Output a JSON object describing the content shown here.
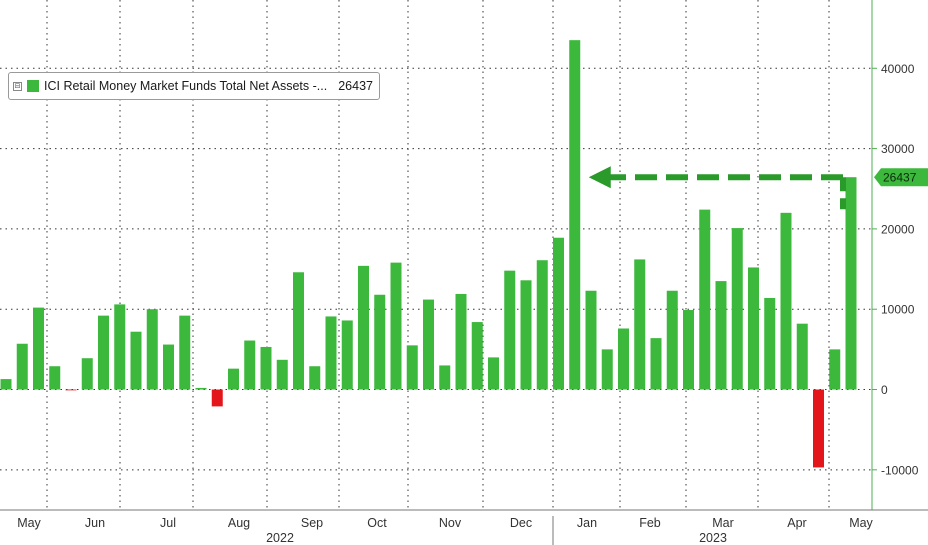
{
  "chart_data": {
    "type": "bar",
    "legend": {
      "label": "ICI Retail Money Market Funds Total Net Assets -...",
      "value": "26437",
      "toggle_glyph": "⊟",
      "placement": "top-left"
    },
    "last_value_label": "26437",
    "x_month_labels": [
      "May",
      "Jun",
      "Jul",
      "Aug",
      "Sep",
      "Oct",
      "Nov",
      "Dec",
      "Jan",
      "Feb",
      "Mar",
      "Apr",
      "May"
    ],
    "x_year_labels": [
      "2022",
      "2023"
    ],
    "y_ticks": [
      -10000,
      0,
      10000,
      20000,
      30000,
      40000
    ],
    "ylim": [
      -15000,
      48500
    ],
    "grid": true,
    "values": [
      1300,
      5700,
      10200,
      2900,
      -100,
      3900,
      9200,
      10600,
      7200,
      10000,
      5600,
      9200,
      200,
      -2100,
      2600,
      6100,
      5300,
      3700,
      14600,
      2900,
      9100,
      8600,
      15400,
      11800,
      15800,
      5500,
      11200,
      3000,
      11900,
      8400,
      4000,
      14800,
      13600,
      16100,
      18900,
      43500,
      12300,
      5000,
      7600,
      16200,
      6400,
      12300,
      9900,
      22400,
      13500,
      20100,
      15200,
      11400,
      22000,
      8200,
      -9700,
      5000,
      26437
    ],
    "colors": {
      "positive": "#3cb83c",
      "negative": "#e3161b",
      "arrow": "#2a9a2a",
      "axis": "#4caf50",
      "grid": "#333333",
      "text": "#333333"
    }
  }
}
